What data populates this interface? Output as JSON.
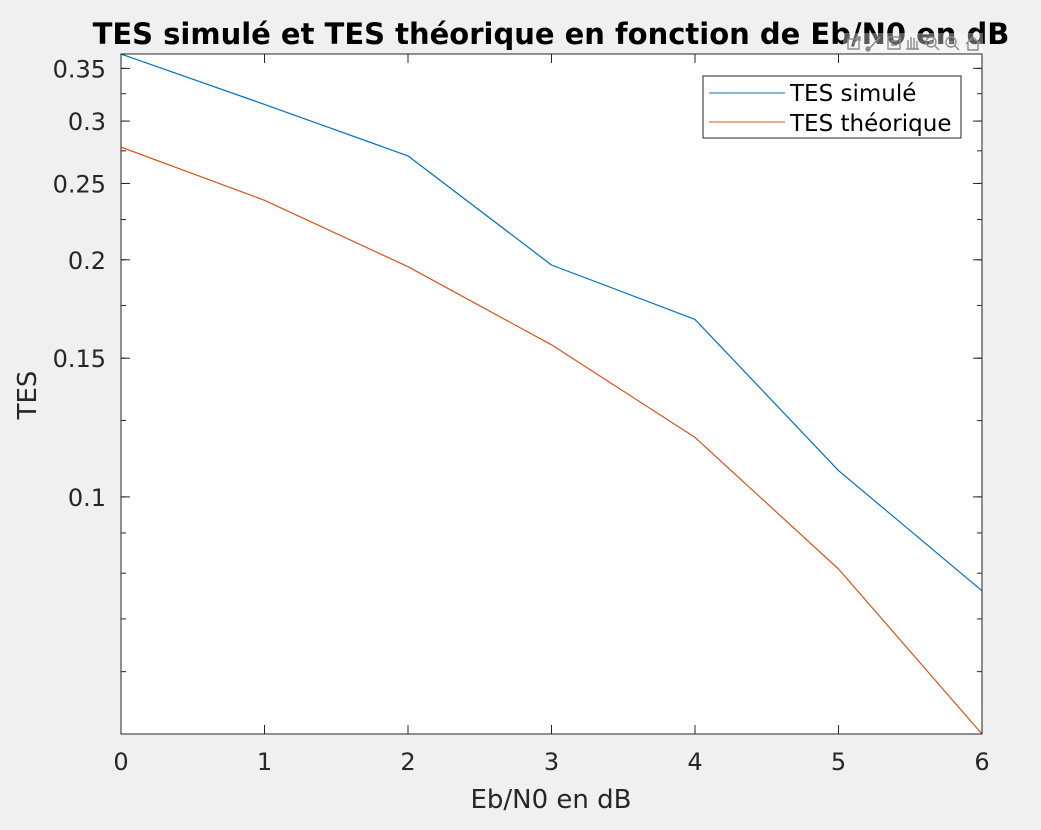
{
  "chart_data": {
    "type": "line",
    "title": "TES simulé et TES théorique en fonction de Eb/N0 en dB",
    "xlabel": "Eb/N0 en dB",
    "ylabel": "TES",
    "y_scale": "log",
    "xlim": [
      0,
      6
    ],
    "ylim": [
      0.05,
      0.365
    ],
    "x_ticks": [
      0,
      1,
      2,
      3,
      4,
      5,
      6
    ],
    "x_tick_labels": [
      "0",
      "1",
      "2",
      "3",
      "4",
      "5",
      "6"
    ],
    "y_ticks": [
      0.1,
      0.15,
      0.2,
      0.25,
      0.3,
      0.35
    ],
    "y_tick_labels": [
      "0.1",
      "0.15",
      "0.2",
      "0.25",
      "0.3",
      "0.35"
    ],
    "x": [
      0,
      1,
      2,
      3,
      4,
      5,
      6
    ],
    "series": [
      {
        "name": "TES simulé",
        "color": "#0072BD",
        "values": [
          0.365,
          0.315,
          0.271,
          0.197,
          0.168,
          0.108,
          0.076
        ]
      },
      {
        "name": "TES théorique",
        "color": "#D95319",
        "values": [
          0.278,
          0.238,
          0.196,
          0.156,
          0.119,
          0.081,
          0.05
        ]
      }
    ],
    "legend_position": "top-right",
    "grid": false
  },
  "toolbar": {
    "icons": [
      "export-icon",
      "brush-icon",
      "datatip-icon",
      "pan-icon",
      "zoom-in-icon",
      "zoom-out-icon",
      "home-icon"
    ]
  }
}
